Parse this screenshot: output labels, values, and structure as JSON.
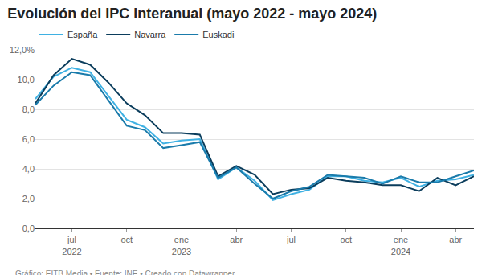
{
  "chart_data": {
    "type": "line",
    "title": "Evolución del IPC interanual (mayo 2022 - mayo 2024)",
    "source": "Gráfico: EITB Media • Fuente: INE • Creado con Datawrapper",
    "categories": [
      null,
      null,
      "jul\n2022",
      null,
      null,
      "oct",
      null,
      null,
      "ene\n2023",
      null,
      null,
      "abr",
      null,
      null,
      "jul",
      null,
      null,
      "oct",
      null,
      null,
      "ene\n2024",
      null,
      null,
      "abr",
      null
    ],
    "series": [
      {
        "name": "España",
        "color": "#3fb1e3",
        "values": [
          8.7,
          10.2,
          10.8,
          10.5,
          8.9,
          7.3,
          6.8,
          5.7,
          5.9,
          6.0,
          3.3,
          4.1,
          3.2,
          1.9,
          2.3,
          2.6,
          3.5,
          3.5,
          3.2,
          3.1,
          3.4,
          2.8,
          3.2,
          3.3,
          3.6
        ]
      },
      {
        "name": "Navarra",
        "color": "#0b3d5c",
        "values": [
          8.4,
          10.3,
          11.4,
          11.0,
          9.8,
          8.4,
          7.6,
          6.4,
          6.4,
          6.3,
          3.5,
          4.2,
          3.6,
          2.3,
          2.6,
          2.7,
          3.4,
          3.2,
          3.1,
          2.9,
          2.9,
          2.5,
          3.4,
          2.9,
          3.5
        ]
      },
      {
        "name": "Euskadi",
        "color": "#1a7bab",
        "values": [
          8.3,
          9.6,
          10.5,
          10.3,
          8.6,
          6.9,
          6.6,
          5.4,
          5.6,
          5.8,
          3.4,
          4.1,
          3.0,
          2.0,
          2.5,
          2.8,
          3.6,
          3.5,
          3.4,
          3.0,
          3.5,
          3.1,
          3.1,
          3.5,
          3.9
        ]
      }
    ],
    "ylim": [
      0,
      12
    ],
    "yticks": [
      {
        "value": 0,
        "label": "0,0"
      },
      {
        "value": 2,
        "label": "2,0"
      },
      {
        "value": 4,
        "label": "4,0"
      },
      {
        "value": 6,
        "label": "6,0"
      },
      {
        "value": 8,
        "label": "8,0"
      },
      {
        "value": 10,
        "label": "10,0"
      },
      {
        "value": 12,
        "label": "12,0%"
      }
    ],
    "grid": true,
    "legend": "top-left"
  }
}
